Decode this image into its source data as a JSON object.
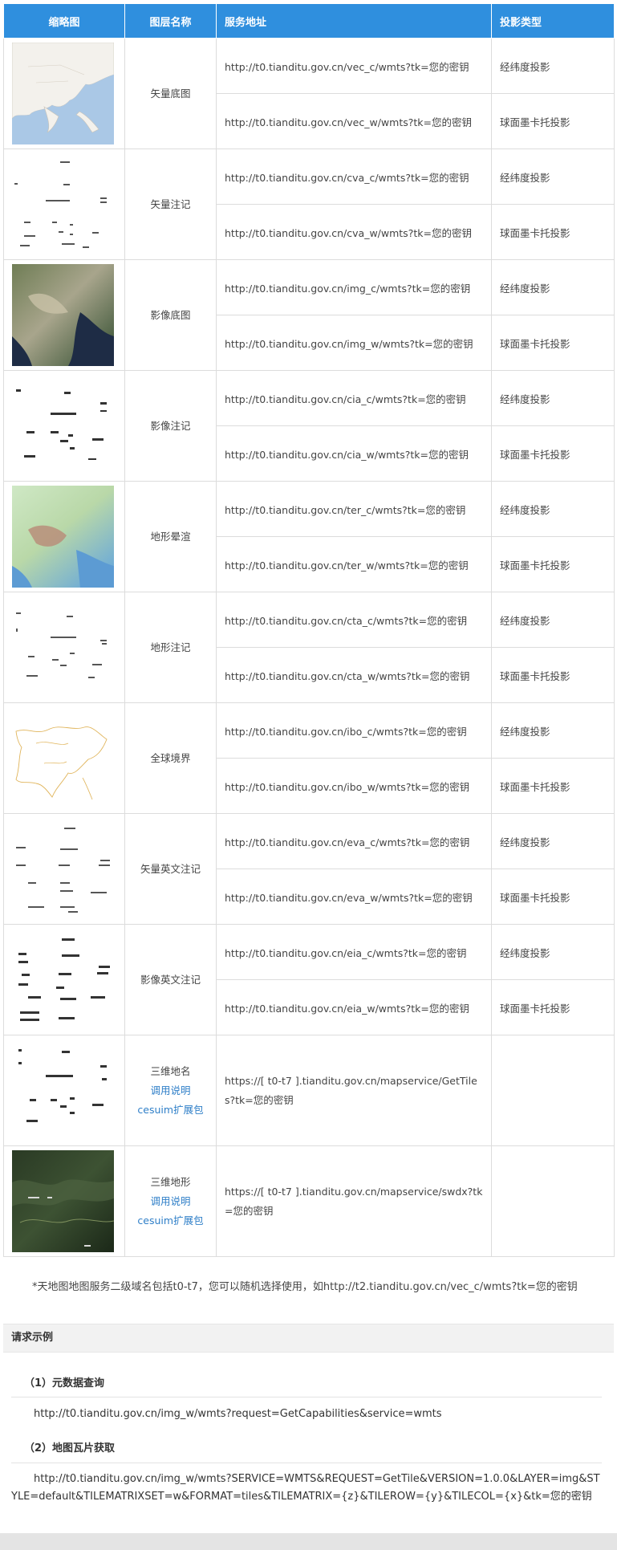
{
  "table": {
    "headers": [
      "缩略图",
      "图层名称",
      "服务地址",
      "投影类型"
    ],
    "rows": [
      {
        "name": "矢量底图",
        "thumb": "vector-basemap-thumbnail",
        "urls": [
          "http://t0.tianditu.gov.cn/vec_c/wmts?tk=您的密钥",
          "http://t0.tianditu.gov.cn/vec_w/wmts?tk=您的密钥"
        ],
        "proj": [
          "经纬度投影",
          "球面墨卡托投影"
        ]
      },
      {
        "name": "矢量注记",
        "thumb": "vector-annotation-thumbnail",
        "urls": [
          "http://t0.tianditu.gov.cn/cva_c/wmts?tk=您的密钥",
          "http://t0.tianditu.gov.cn/cva_w/wmts?tk=您的密钥"
        ],
        "proj": [
          "经纬度投影",
          "球面墨卡托投影"
        ]
      },
      {
        "name": "影像底图",
        "thumb": "imagery-basemap-thumbnail",
        "urls": [
          "http://t0.tianditu.gov.cn/img_c/wmts?tk=您的密钥",
          "http://t0.tianditu.gov.cn/img_w/wmts?tk=您的密钥"
        ],
        "proj": [
          "经纬度投影",
          "球面墨卡托投影"
        ]
      },
      {
        "name": "影像注记",
        "thumb": "imagery-annotation-thumbnail",
        "urls": [
          "http://t0.tianditu.gov.cn/cia_c/wmts?tk=您的密钥",
          "http://t0.tianditu.gov.cn/cia_w/wmts?tk=您的密钥"
        ],
        "proj": [
          "经纬度投影",
          "球面墨卡托投影"
        ]
      },
      {
        "name": "地形晕渲",
        "thumb": "terrain-shading-thumbnail",
        "urls": [
          "http://t0.tianditu.gov.cn/ter_c/wmts?tk=您的密钥",
          "http://t0.tianditu.gov.cn/ter_w/wmts?tk=您的密钥"
        ],
        "proj": [
          "经纬度投影",
          "球面墨卡托投影"
        ]
      },
      {
        "name": "地形注记",
        "thumb": "terrain-annotation-thumbnail",
        "urls": [
          "http://t0.tianditu.gov.cn/cta_c/wmts?tk=您的密钥",
          "http://t0.tianditu.gov.cn/cta_w/wmts?tk=您的密钥"
        ],
        "proj": [
          "经纬度投影",
          "球面墨卡托投影"
        ]
      },
      {
        "name": "全球境界",
        "thumb": "global-boundary-thumbnail",
        "urls": [
          "http://t0.tianditu.gov.cn/ibo_c/wmts?tk=您的密钥",
          "http://t0.tianditu.gov.cn/ibo_w/wmts?tk=您的密钥"
        ],
        "proj": [
          "经纬度投影",
          "球面墨卡托投影"
        ]
      },
      {
        "name": "矢量英文注记",
        "thumb": "vector-english-annotation-thumbnail",
        "urls": [
          "http://t0.tianditu.gov.cn/eva_c/wmts?tk=您的密钥",
          "http://t0.tianditu.gov.cn/eva_w/wmts?tk=您的密钥"
        ],
        "proj": [
          "经纬度投影",
          "球面墨卡托投影"
        ]
      },
      {
        "name": "影像英文注记",
        "thumb": "imagery-english-annotation-thumbnail",
        "urls": [
          "http://t0.tianditu.gov.cn/eia_c/wmts?tk=您的密钥",
          "http://t0.tianditu.gov.cn/eia_w/wmts?tk=您的密钥"
        ],
        "proj": [
          "经纬度投影",
          "球面墨卡托投影"
        ]
      }
    ],
    "row_3d_names": {
      "name": "三维地名",
      "link1": "调用说明",
      "link2": "cesuim扩展包",
      "url": "https://[ t0-t7 ].tianditu.gov.cn/mapservice/GetTiles?tk=您的密钥"
    },
    "row_3d_terrain": {
      "name": "三维地形",
      "link1": "调用说明",
      "link2": "cesuim扩展包",
      "url": "https://[ t0-t7 ].tianditu.gov.cn/mapservice/swdx?tk=您的密钥"
    }
  },
  "note": "*天地图地图服务二级域名包括t0-t7，您可以随机选择使用，如http://t2.tianditu.gov.cn/vec_c/wmts?tk=您的密钥",
  "request_section": {
    "title": "请求示例",
    "metadata_title": "（1）元数据查询",
    "metadata_url": "http://t0.tianditu.gov.cn/img_w/wmts?request=GetCapabilities&service=wmts",
    "tile_title": "（2）地图瓦片获取",
    "tile_url": "http://t0.tianditu.gov.cn/img_w/wmts?SERVICE=WMTS&REQUEST=GetTile&VERSION=1.0.0&LAYER=img&STYLE=default&TILEMATRIXSET=w&FORMAT=tiles&TILEMATRIX={z}&TILEROW={y}&TILECOL={x}&tk=您的密钥"
  },
  "colors": {
    "header_bg": "#2f8fde",
    "link": "#2f7fc8",
    "border": "#dcdcdc"
  }
}
